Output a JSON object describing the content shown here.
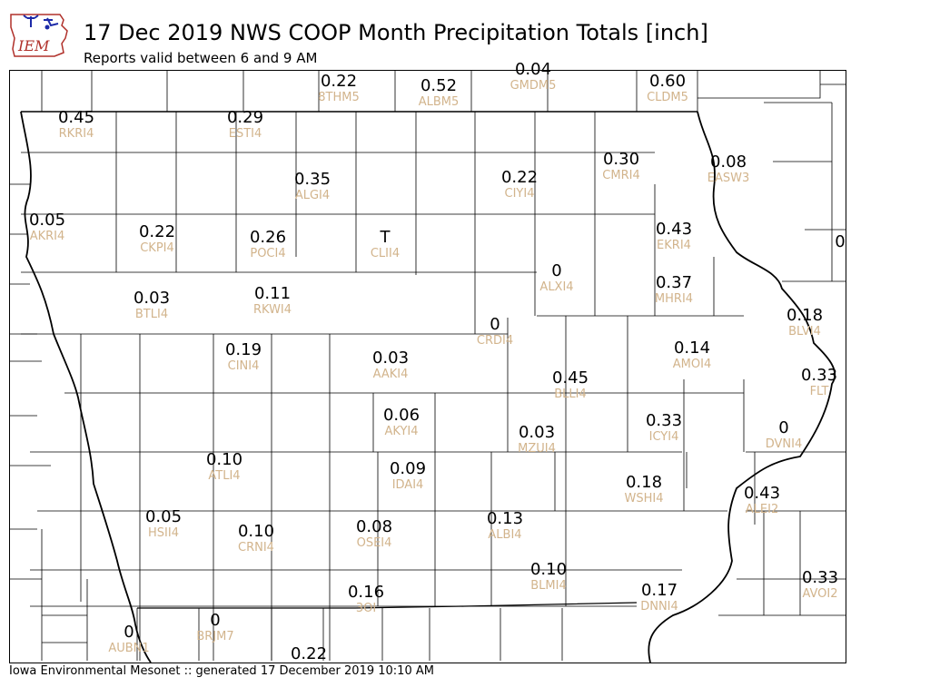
{
  "header": {
    "title": "17 Dec 2019 NWS COOP Month Precipitation Totals [inch]",
    "subtitle": "Reports valid between 6 and 9 AM",
    "logo_text": "IEM"
  },
  "footer": {
    "text": "Iowa Environmental Mesonet :: generated 17 December 2019 10:10 AM"
  },
  "colors": {
    "value_text": "#000000",
    "station_id_text": "#d2b48c",
    "county_lines": "#000000",
    "logo_blue": "#1c2aa8",
    "logo_red": "#b0302a"
  },
  "stations": [
    {
      "id": "8THM5",
      "value": "0.22"
    },
    {
      "id": "ALBM5",
      "value": "0.52"
    },
    {
      "id": "GMDM5",
      "value": "0.04"
    },
    {
      "id": "CLDM5",
      "value": "0.60"
    },
    {
      "id": "RKRI4",
      "value": "0.45"
    },
    {
      "id": "ESTI4",
      "value": "0.29"
    },
    {
      "id": "ALGI4",
      "value": "0.35"
    },
    {
      "id": "CIYI4",
      "value": "0.22"
    },
    {
      "id": "CMRI4",
      "value": "0.30"
    },
    {
      "id": "EASW3",
      "value": "0.08"
    },
    {
      "id": "AKRI4",
      "value": "0.05"
    },
    {
      "id": "CKPI4",
      "value": "0.22"
    },
    {
      "id": "POCI4",
      "value": "0.26"
    },
    {
      "id": "CLII4",
      "value": "T"
    },
    {
      "id": "EKRI4",
      "value": "0.43"
    },
    {
      "id": "",
      "value": "0"
    },
    {
      "id": "ALXI4",
      "value": "0"
    },
    {
      "id": "BTLI4",
      "value": "0.03"
    },
    {
      "id": "RKWI4",
      "value": "0.11"
    },
    {
      "id": "MHRI4",
      "value": "0.37"
    },
    {
      "id": "CRDI4",
      "value": "0"
    },
    {
      "id": "BLVI4",
      "value": "0.18"
    },
    {
      "id": "CINI4",
      "value": "0.19"
    },
    {
      "id": "AAKI4",
      "value": "0.03"
    },
    {
      "id": "AMOI4",
      "value": "0.14"
    },
    {
      "id": "BLLI4",
      "value": "0.45"
    },
    {
      "id": "FLT",
      "value": "0.33"
    },
    {
      "id": "AKYI4",
      "value": "0.06"
    },
    {
      "id": "ICYI4",
      "value": "0.33"
    },
    {
      "id": "DVNI4",
      "value": "0"
    },
    {
      "id": "MZUI4",
      "value": "0.03"
    },
    {
      "id": "ATLI4",
      "value": "0.10"
    },
    {
      "id": "IDAI4",
      "value": "0.09"
    },
    {
      "id": "WSHI4",
      "value": "0.18"
    },
    {
      "id": "ALEI2",
      "value": "0.43"
    },
    {
      "id": "HSII4",
      "value": "0.05"
    },
    {
      "id": "CRNI4",
      "value": "0.10"
    },
    {
      "id": "OSEI4",
      "value": "0.08"
    },
    {
      "id": "ALBI4",
      "value": "0.13"
    },
    {
      "id": "BLMI4",
      "value": "0.10"
    },
    {
      "id": "AVOI2",
      "value": "0.33"
    },
    {
      "id": "3OI",
      "value": "0.16"
    },
    {
      "id": "DNNI4",
      "value": "0.17"
    },
    {
      "id": "AUBN1",
      "value": "0"
    },
    {
      "id": "BRJM7",
      "value": "0"
    },
    {
      "id": "",
      "value": "0.22"
    }
  ]
}
